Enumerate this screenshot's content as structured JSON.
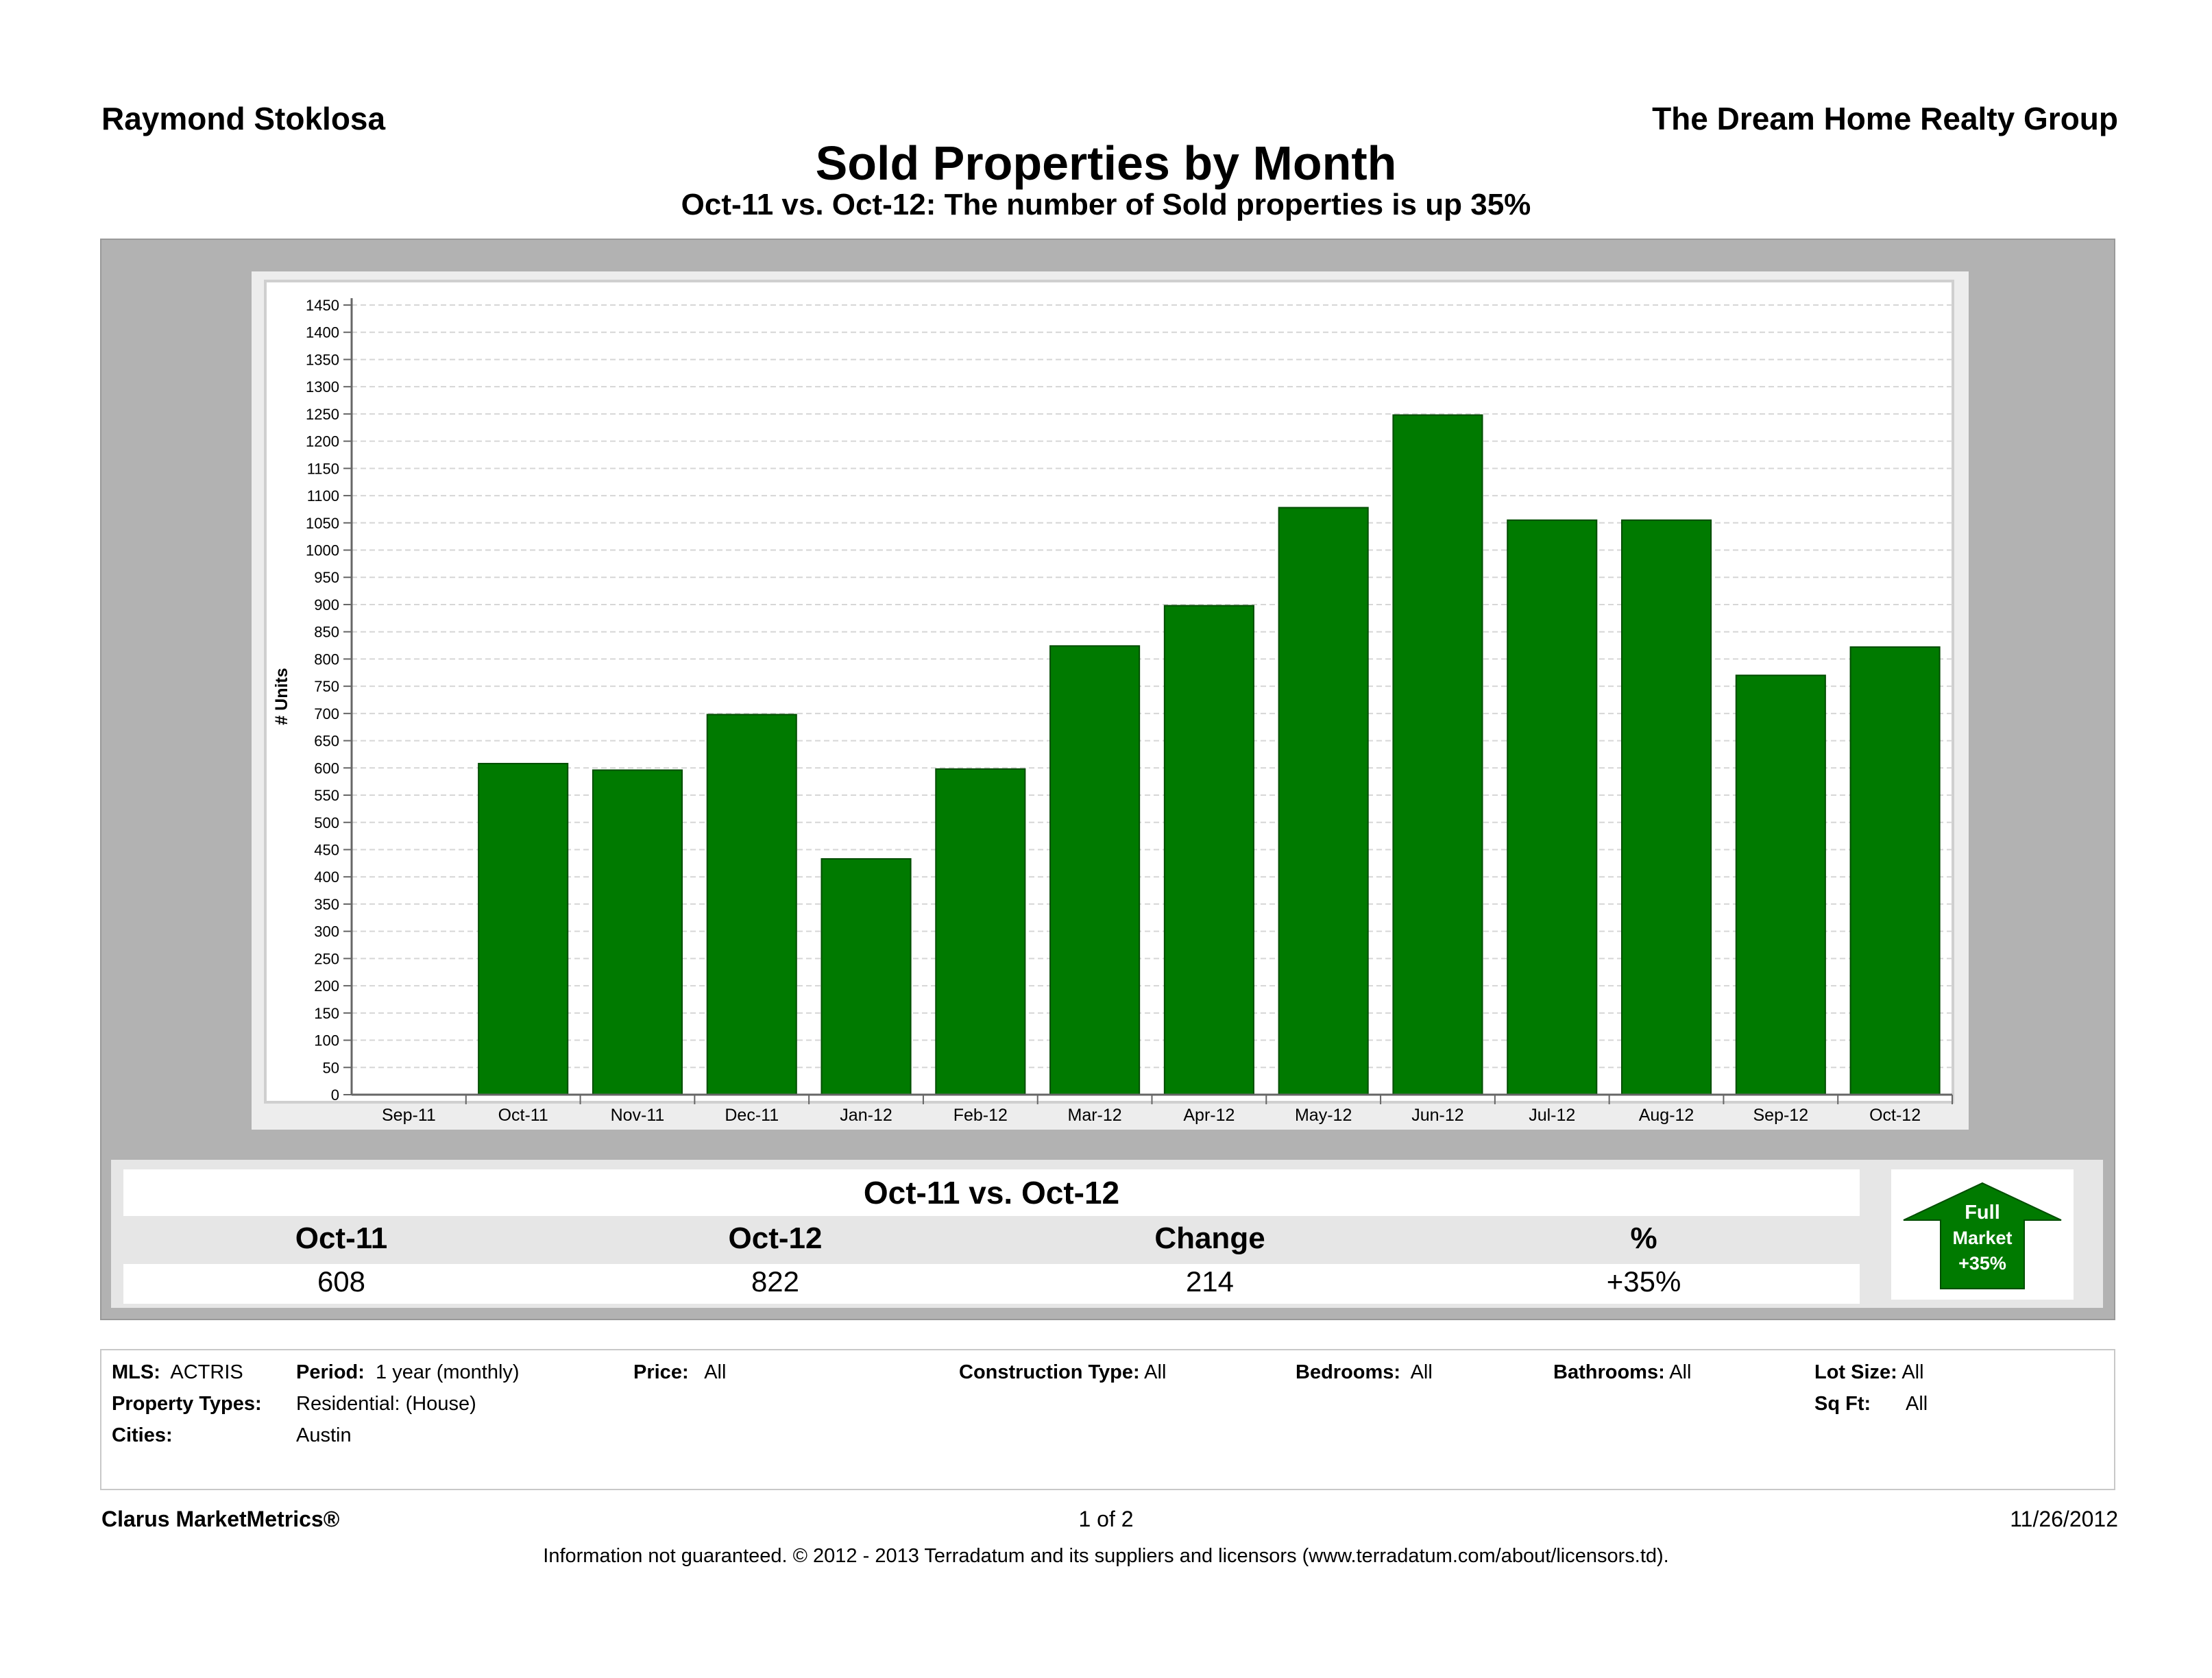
{
  "header": {
    "agent": "Raymond Stoklosa",
    "company": "The Dream Home Realty Group",
    "title": "Sold Properties by Month",
    "subtitle": "Oct-11 vs. Oct-12: The number of Sold properties is up 35%"
  },
  "chart_data": {
    "type": "bar",
    "ylabel": "# Units",
    "xlabel": "",
    "ylim": [
      0,
      1450
    ],
    "y_ticks": [
      0,
      50,
      100,
      150,
      200,
      250,
      300,
      350,
      400,
      450,
      500,
      550,
      600,
      650,
      700,
      750,
      800,
      850,
      900,
      950,
      1000,
      1050,
      1100,
      1150,
      1200,
      1250,
      1300,
      1350,
      1400,
      1450
    ],
    "categories": [
      "Sep-11",
      "Oct-11",
      "Nov-11",
      "Dec-11",
      "Jan-12",
      "Feb-12",
      "Mar-12",
      "Apr-12",
      "May-12",
      "Jun-12",
      "Jul-12",
      "Aug-12",
      "Sep-12",
      "Oct-12"
    ],
    "values": [
      null,
      608,
      596,
      698,
      433,
      598,
      824,
      898,
      1078,
      1248,
      1055,
      1055,
      770,
      822
    ],
    "bar_color": "#007a00",
    "grid": true
  },
  "summary": {
    "title": "Oct-11 vs. Oct-12",
    "columns": [
      {
        "head": "Oct-11",
        "value": "608"
      },
      {
        "head": "Oct-12",
        "value": "822"
      },
      {
        "head": "Change",
        "value": "214"
      },
      {
        "head": "%",
        "value": "+35%"
      }
    ],
    "arrow": {
      "line1": "Full",
      "line2": "Market",
      "line3": "+35%",
      "color": "#007a00"
    }
  },
  "criteria": {
    "mls_label": "MLS:",
    "mls_value": "ACTRIS",
    "period_label": "Period:",
    "period_value": "1 year (monthly)",
    "price_label": "Price:",
    "price_value": "All",
    "construction_label": "Construction Type:",
    "construction_value": "All",
    "bedrooms_label": "Bedrooms:",
    "bedrooms_value": "All",
    "bathrooms_label": "Bathrooms:",
    "bathrooms_value": "All",
    "lot_label": "Lot Size:",
    "lot_value": "All",
    "ptypes_label": "Property Types:",
    "ptypes_value": "Residential: (House)",
    "sqft_label": "Sq Ft:",
    "sqft_value": "All",
    "cities_label": "Cities:",
    "cities_value": "Austin"
  },
  "footer": {
    "brand": "Clarus MarketMetrics®",
    "page": "1 of 2",
    "date": "11/26/2012",
    "disclaimer": "Information not guaranteed.  © 2012 - 2013 Terradatum and its suppliers and licensors (www.terradatum.com/about/licensors.td)."
  }
}
